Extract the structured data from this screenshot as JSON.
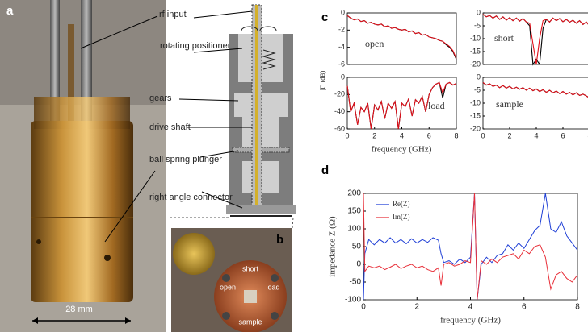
{
  "photo_a": {
    "label": "a",
    "scale": "28 mm"
  },
  "schematic": {
    "labels": [
      "rf input",
      "rotating positioner",
      "gears",
      "drive shaft",
      "ball spring plunger",
      "right angle connector"
    ]
  },
  "photo_b": {
    "label": "b",
    "positions": [
      "short",
      "open",
      "load",
      "sample"
    ]
  },
  "panel_c": {
    "label": "c",
    "ylabel": "|Γ| (dB)",
    "xlabel": "frequency (GHz)"
  },
  "panel_d": {
    "label": "d"
  },
  "chart_data": [
    {
      "type": "line",
      "annotation": "open",
      "xlim": [
        0,
        8
      ],
      "ylim": [
        -6,
        0
      ],
      "yticks": [
        0,
        -2,
        -4,
        -6
      ],
      "x": [
        0,
        0.25,
        0.5,
        0.75,
        1,
        1.25,
        1.5,
        1.75,
        2,
        2.25,
        2.5,
        2.75,
        3,
        3.25,
        3.5,
        3.75,
        4,
        4.25,
        4.5,
        4.75,
        5,
        5.25,
        5.5,
        5.75,
        6,
        6.25,
        6.5,
        6.75,
        7,
        7.25,
        7.5,
        7.75,
        8
      ],
      "series": [
        {
          "color": "#000000",
          "values": [
            -0.3,
            -0.6,
            -0.8,
            -0.7,
            -1.0,
            -0.9,
            -1.2,
            -1.1,
            -1.3,
            -1.4,
            -1.3,
            -1.6,
            -1.5,
            -1.8,
            -1.7,
            -1.9,
            -2.0,
            -1.9,
            -2.2,
            -2.1,
            -2.4,
            -2.3,
            -2.6,
            -2.5,
            -2.8,
            -2.9,
            -3.0,
            -3.2,
            -3.3,
            -3.7,
            -4.0,
            -4.5,
            -5.4
          ]
        },
        {
          "color": "#e0101a",
          "values": [
            -0.3,
            -0.6,
            -0.8,
            -0.7,
            -1.0,
            -0.9,
            -1.2,
            -1.1,
            -1.3,
            -1.4,
            -1.3,
            -1.6,
            -1.5,
            -1.8,
            -1.7,
            -1.9,
            -2.0,
            -1.9,
            -2.2,
            -2.1,
            -2.4,
            -2.3,
            -2.6,
            -2.5,
            -2.8,
            -2.9,
            -3.0,
            -3.2,
            -3.3,
            -3.6,
            -3.9,
            -4.4,
            -5.3
          ]
        }
      ]
    },
    {
      "type": "line",
      "annotation": "short",
      "xlim": [
        0,
        8
      ],
      "ylim": [
        -20,
        0
      ],
      "yticks": [
        0,
        -5,
        -10,
        -15,
        -20
      ],
      "x": [
        0,
        0.25,
        0.5,
        0.75,
        1,
        1.25,
        1.5,
        1.75,
        2,
        2.25,
        2.5,
        2.75,
        3,
        3.25,
        3.5,
        3.75,
        4,
        4.25,
        4.5,
        4.75,
        5,
        5.25,
        5.5,
        5.75,
        6,
        6.25,
        6.5,
        6.75,
        7,
        7.25,
        7.5,
        7.75,
        8
      ],
      "series": [
        {
          "color": "#000000",
          "values": [
            -0.5,
            -1.5,
            -1,
            -2,
            -1.2,
            -2.5,
            -1.5,
            -2.8,
            -1.8,
            -3,
            -2,
            -3.2,
            -2.2,
            -3.5,
            -5,
            -20,
            -18,
            -20,
            -6,
            -2.5,
            -3.5,
            -2,
            -3,
            -2.2,
            -3.4,
            -2.5,
            -3.6,
            -2.8,
            -4,
            -3,
            -4.5,
            -3.5,
            -5
          ]
        },
        {
          "color": "#e0101a",
          "values": [
            -0.5,
            -1.5,
            -1,
            -2,
            -1.2,
            -2.5,
            -1.5,
            -2.8,
            -1.8,
            -3,
            -2,
            -3.2,
            -2.2,
            -3.5,
            -4,
            -12,
            -20,
            -10,
            -3,
            -2.5,
            -3.5,
            -2,
            -3,
            -2.2,
            -3.4,
            -2.5,
            -3.6,
            -2.8,
            -4,
            -3,
            -4.5,
            -3.5,
            -5
          ]
        }
      ]
    },
    {
      "type": "line",
      "annotation": "load",
      "xlim": [
        0,
        8
      ],
      "ylim": [
        -60,
        0
      ],
      "yticks": [
        0,
        -20,
        -40,
        -60
      ],
      "xticks": [
        0,
        2,
        4,
        6,
        8
      ],
      "x": [
        0,
        0.25,
        0.5,
        0.75,
        1,
        1.25,
        1.5,
        1.75,
        2,
        2.25,
        2.5,
        2.75,
        3,
        3.25,
        3.5,
        3.75,
        4,
        4.25,
        4.5,
        4.75,
        5,
        5.25,
        5.5,
        5.75,
        6,
        6.25,
        6.5,
        6.75,
        7,
        7.25,
        7.5,
        7.75,
        8
      ],
      "series": [
        {
          "color": "#000000",
          "values": [
            -10,
            -40,
            -30,
            -55,
            -35,
            -40,
            -30,
            -60,
            -32,
            -38,
            -28,
            -48,
            -30,
            -36,
            -28,
            -60,
            -30,
            -34,
            -25,
            -45,
            -26,
            -30,
            -22,
            -40,
            -20,
            -12,
            -8,
            -6,
            -24,
            -8,
            -6,
            -9,
            -7
          ]
        },
        {
          "color": "#e0101a",
          "values": [
            -10,
            -40,
            -30,
            -55,
            -35,
            -40,
            -30,
            -60,
            -32,
            -38,
            -28,
            -48,
            -30,
            -36,
            -28,
            -60,
            -30,
            -34,
            -25,
            -45,
            -26,
            -30,
            -22,
            -40,
            -20,
            -12,
            -8,
            -6,
            -18,
            -8,
            -6,
            -9,
            -7
          ]
        }
      ]
    },
    {
      "type": "line",
      "annotation": "sample",
      "xlim": [
        0,
        8
      ],
      "ylim": [
        -20,
        0
      ],
      "yticks": [
        0,
        -5,
        -10,
        -15,
        -20
      ],
      "xticks": [
        0,
        2,
        4,
        6,
        8
      ],
      "x": [
        0,
        0.25,
        0.5,
        0.75,
        1,
        1.25,
        1.5,
        1.75,
        2,
        2.25,
        2.5,
        2.75,
        3,
        3.25,
        3.5,
        3.75,
        4,
        4.25,
        4.5,
        4.75,
        5,
        5.25,
        5.5,
        5.75,
        6,
        6.25,
        6.5,
        6.75,
        7,
        7.25,
        7.5,
        7.75,
        8
      ],
      "series": [
        {
          "color": "#000000",
          "values": [
            -2,
            -3,
            -2.5,
            -3.5,
            -3,
            -4,
            -3.2,
            -4.2,
            -3.5,
            -4.5,
            -3.8,
            -4.6,
            -4,
            -5,
            -4.2,
            -5.2,
            -4.5,
            -5.5,
            -4.8,
            -5.8,
            -5,
            -6,
            -5.3,
            -6.3,
            -5.5,
            -6.5,
            -5.8,
            -6.8,
            -6,
            -7,
            -6.5,
            -7.2,
            -8
          ]
        },
        {
          "color": "#e0101a",
          "values": [
            -2,
            -3,
            -2.5,
            -3.5,
            -3,
            -4,
            -3.2,
            -4.2,
            -3.5,
            -4.5,
            -3.8,
            -4.6,
            -4,
            -5,
            -4.2,
            -5.2,
            -4.5,
            -5.5,
            -4.8,
            -5.8,
            -5,
            -6,
            -5.3,
            -6.3,
            -5.5,
            -6.5,
            -5.8,
            -6.8,
            -6,
            -7,
            -6.5,
            -7.2,
            -8
          ]
        }
      ]
    },
    {
      "type": "line",
      "xlabel": "frequency (GHz)",
      "ylabel": "impedance Z (Ω)",
      "xlim": [
        0,
        8
      ],
      "ylim": [
        -100,
        200
      ],
      "xticks": [
        0,
        2,
        4,
        6,
        8
      ],
      "yticks": [
        -100,
        -50,
        0,
        50,
        100,
        150,
        200
      ],
      "x": [
        0,
        0.05,
        0.2,
        0.4,
        0.6,
        0.8,
        1.0,
        1.2,
        1.4,
        1.6,
        1.8,
        2.0,
        2.2,
        2.4,
        2.6,
        2.8,
        2.9,
        3.0,
        3.2,
        3.4,
        3.6,
        3.8,
        4.0,
        4.15,
        4.25,
        4.4,
        4.6,
        4.8,
        5.0,
        5.2,
        5.4,
        5.6,
        5.8,
        6.0,
        6.2,
        6.4,
        6.6,
        6.8,
        7.0,
        7.2,
        7.4,
        7.6,
        7.8,
        8.0
      ],
      "series": [
        {
          "name": "Re(Z)",
          "color": "#1f3fd6",
          "values": [
            -100,
            30,
            70,
            55,
            70,
            60,
            75,
            60,
            70,
            58,
            72,
            60,
            70,
            62,
            75,
            68,
            30,
            5,
            10,
            0,
            15,
            5,
            20,
            200,
            -100,
            0,
            20,
            5,
            25,
            30,
            55,
            40,
            60,
            45,
            70,
            95,
            110,
            200,
            100,
            90,
            120,
            80,
            60,
            40
          ]
        },
        {
          "name": "Im(Z)",
          "color": "#e8303a",
          "values": [
            200,
            -20,
            -5,
            -10,
            -5,
            -15,
            -8,
            0,
            -12,
            -5,
            0,
            -10,
            -5,
            -15,
            -20,
            -10,
            -60,
            0,
            5,
            -5,
            0,
            10,
            5,
            200,
            -100,
            10,
            0,
            15,
            5,
            20,
            25,
            30,
            15,
            40,
            30,
            50,
            55,
            20,
            -70,
            -30,
            -20,
            -40,
            -50,
            -30
          ]
        }
      ]
    }
  ]
}
